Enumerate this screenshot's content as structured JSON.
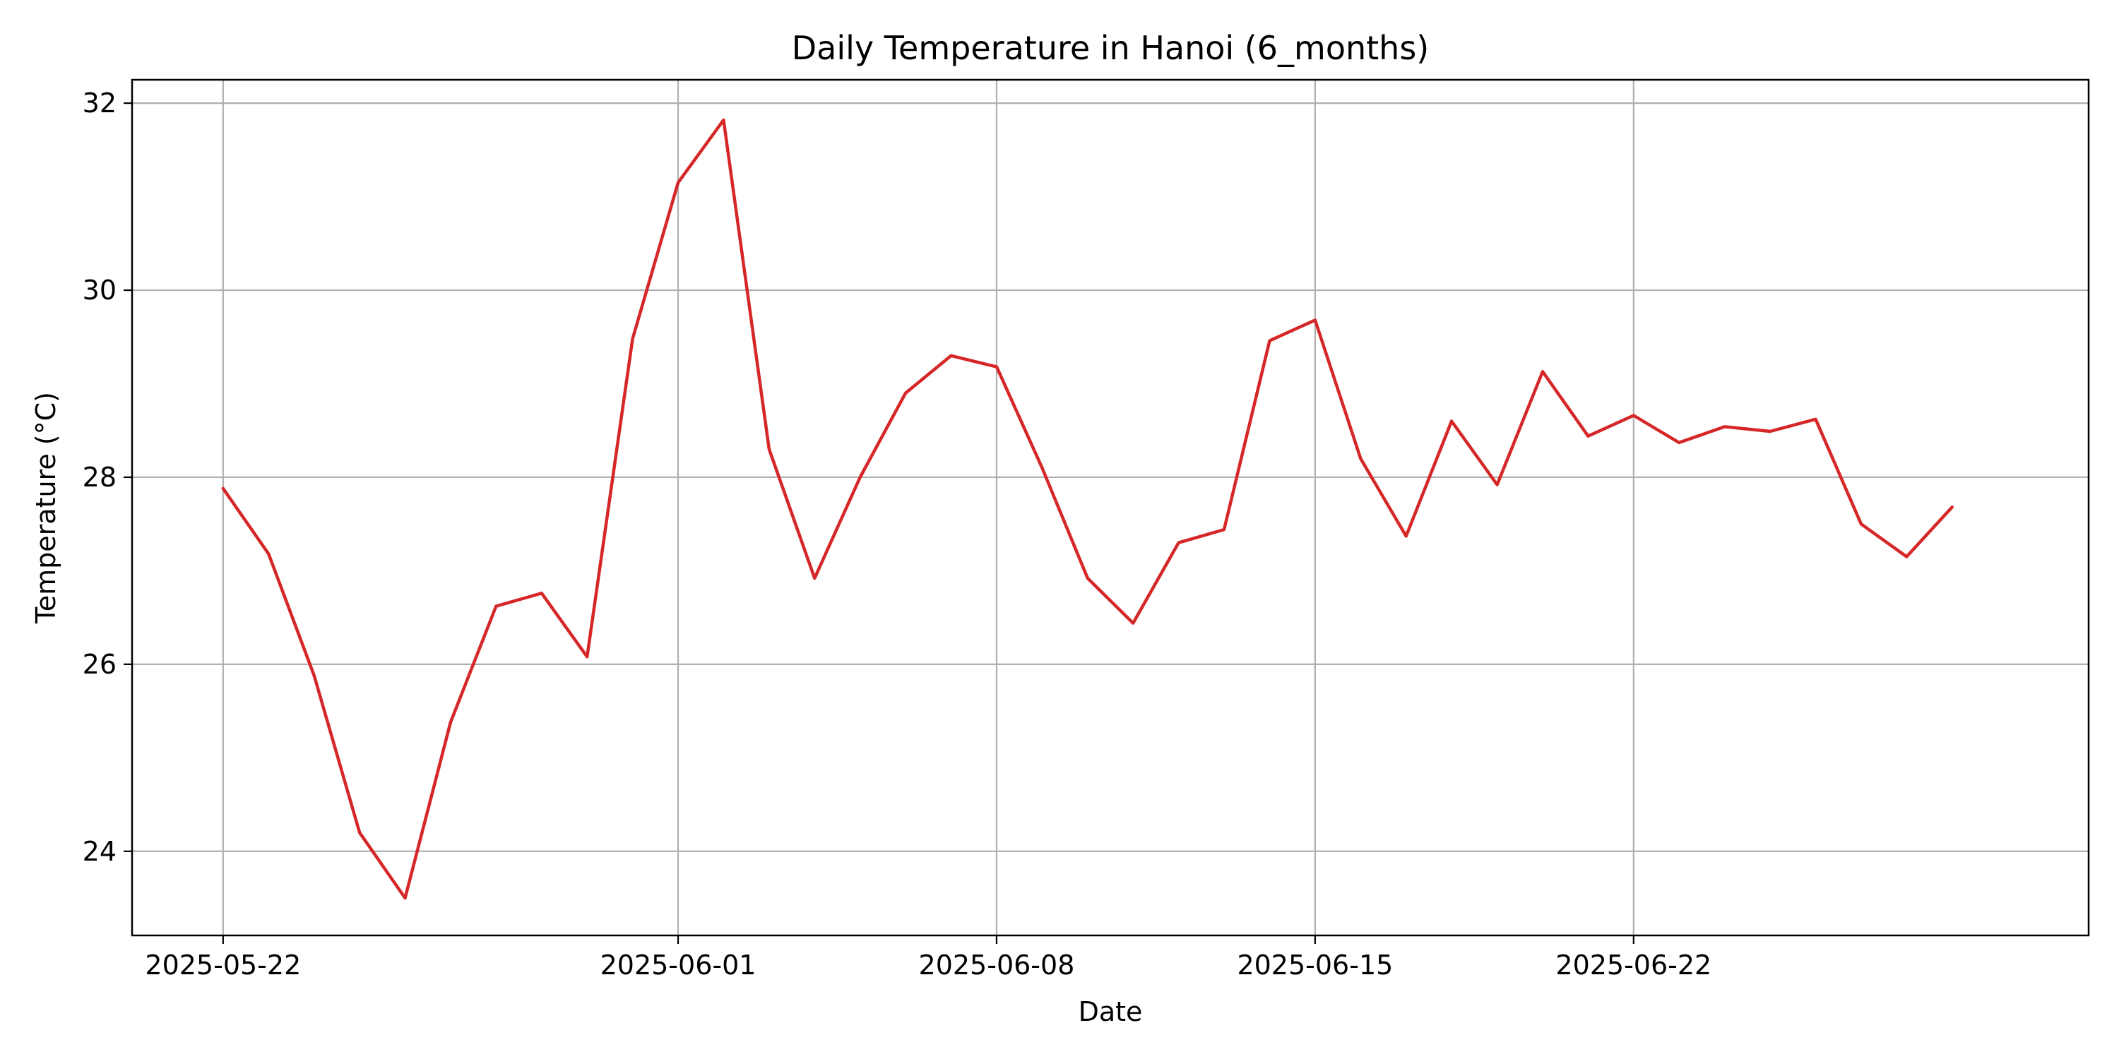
{
  "chart_data": {
    "type": "line",
    "title": "Daily Temperature in Hanoi (6_months)",
    "xlabel": "Date",
    "ylabel": "Temperature (°C)",
    "grid": true,
    "legend": "none",
    "line_color": "#d62728",
    "grid_color": "#b0b0b0",
    "x_ticks": [
      "2025-05-22",
      "2025-06-01",
      "2025-06-08",
      "2025-06-15",
      "2025-06-22"
    ],
    "y_ticks": [
      24,
      26,
      28,
      30,
      32
    ],
    "xlim": [
      "2025-05-20",
      "2025-07-02"
    ],
    "ylim": [
      23.1,
      32.25
    ],
    "x": [
      "2025-05-22",
      "2025-05-23",
      "2025-05-24",
      "2025-05-25",
      "2025-05-26",
      "2025-05-27",
      "2025-05-28",
      "2025-05-29",
      "2025-05-30",
      "2025-05-31",
      "2025-06-01",
      "2025-06-02",
      "2025-06-03",
      "2025-06-04",
      "2025-06-05",
      "2025-06-06",
      "2025-06-07",
      "2025-06-08",
      "2025-06-09",
      "2025-06-10",
      "2025-06-11",
      "2025-06-12",
      "2025-06-13",
      "2025-06-14",
      "2025-06-15",
      "2025-06-16",
      "2025-06-17",
      "2025-06-18",
      "2025-06-19",
      "2025-06-20",
      "2025-06-21",
      "2025-06-22",
      "2025-06-23",
      "2025-06-24",
      "2025-06-25",
      "2025-06-26",
      "2025-06-27",
      "2025-06-28",
      "2025-06-29"
    ],
    "values": [
      27.88,
      27.18,
      25.88,
      24.2,
      23.5,
      25.38,
      26.62,
      26.76,
      26.08,
      29.48,
      31.15,
      31.82,
      28.3,
      26.92,
      28.0,
      28.9,
      29.3,
      29.18,
      28.1,
      26.92,
      26.44,
      27.3,
      27.44,
      29.46,
      29.68,
      28.2,
      27.37,
      28.6,
      27.92,
      29.13,
      28.44,
      28.66,
      28.37,
      28.54,
      28.49,
      28.62,
      27.5,
      27.15,
      27.68
    ]
  }
}
